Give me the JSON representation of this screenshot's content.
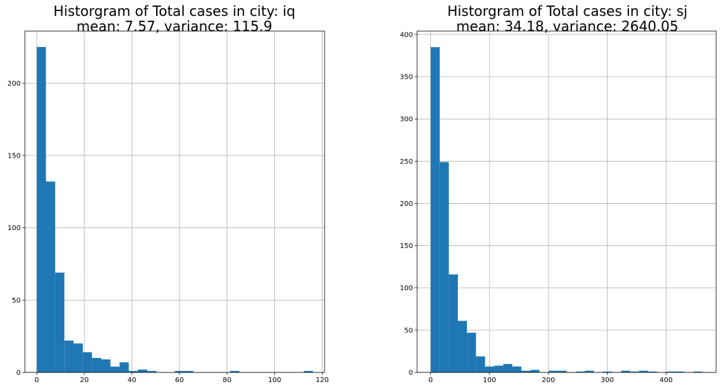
{
  "chart_data": [
    {
      "type": "bar",
      "title_line1": "Historgram of Total cases in city: iq",
      "title_line2": "mean: 7.57, variance: 115.9",
      "grid": true,
      "xlim": [
        -5,
        121
      ],
      "ylim": [
        0,
        236
      ],
      "xticks": [
        0,
        20,
        40,
        60,
        80,
        100,
        120
      ],
      "yticks": [
        0,
        50,
        100,
        150,
        200
      ],
      "bar_color": "#1f77b4",
      "bin_width": 3.87,
      "bin_start": 0,
      "values": [
        225,
        132,
        69,
        22,
        20,
        14,
        10,
        9,
        4,
        7,
        1,
        2,
        1,
        0,
        0,
        1,
        1,
        0,
        0,
        0,
        0,
        1,
        0,
        0,
        0,
        0,
        0,
        0,
        0,
        1
      ]
    },
    {
      "type": "bar",
      "title_line1": "Historgram of Total cases in city: sj",
      "title_line2": "mean: 34.18, variance: 2640.05",
      "grid": true,
      "xlim": [
        -23,
        485
      ],
      "ylim": [
        0,
        404
      ],
      "xticks": [
        0,
        100,
        200,
        300,
        400
      ],
      "yticks": [
        0,
        50,
        100,
        150,
        200,
        250,
        300,
        350,
        400
      ],
      "bar_color": "#1f77b4",
      "bin_width": 15.4,
      "bin_start": 0,
      "values": [
        385,
        249,
        116,
        61,
        47,
        19,
        7,
        8,
        10,
        7,
        2,
        3,
        0,
        2,
        2,
        0,
        1,
        2,
        0,
        1,
        0,
        2,
        1,
        2,
        1,
        0,
        1,
        1,
        0,
        1
      ]
    }
  ]
}
